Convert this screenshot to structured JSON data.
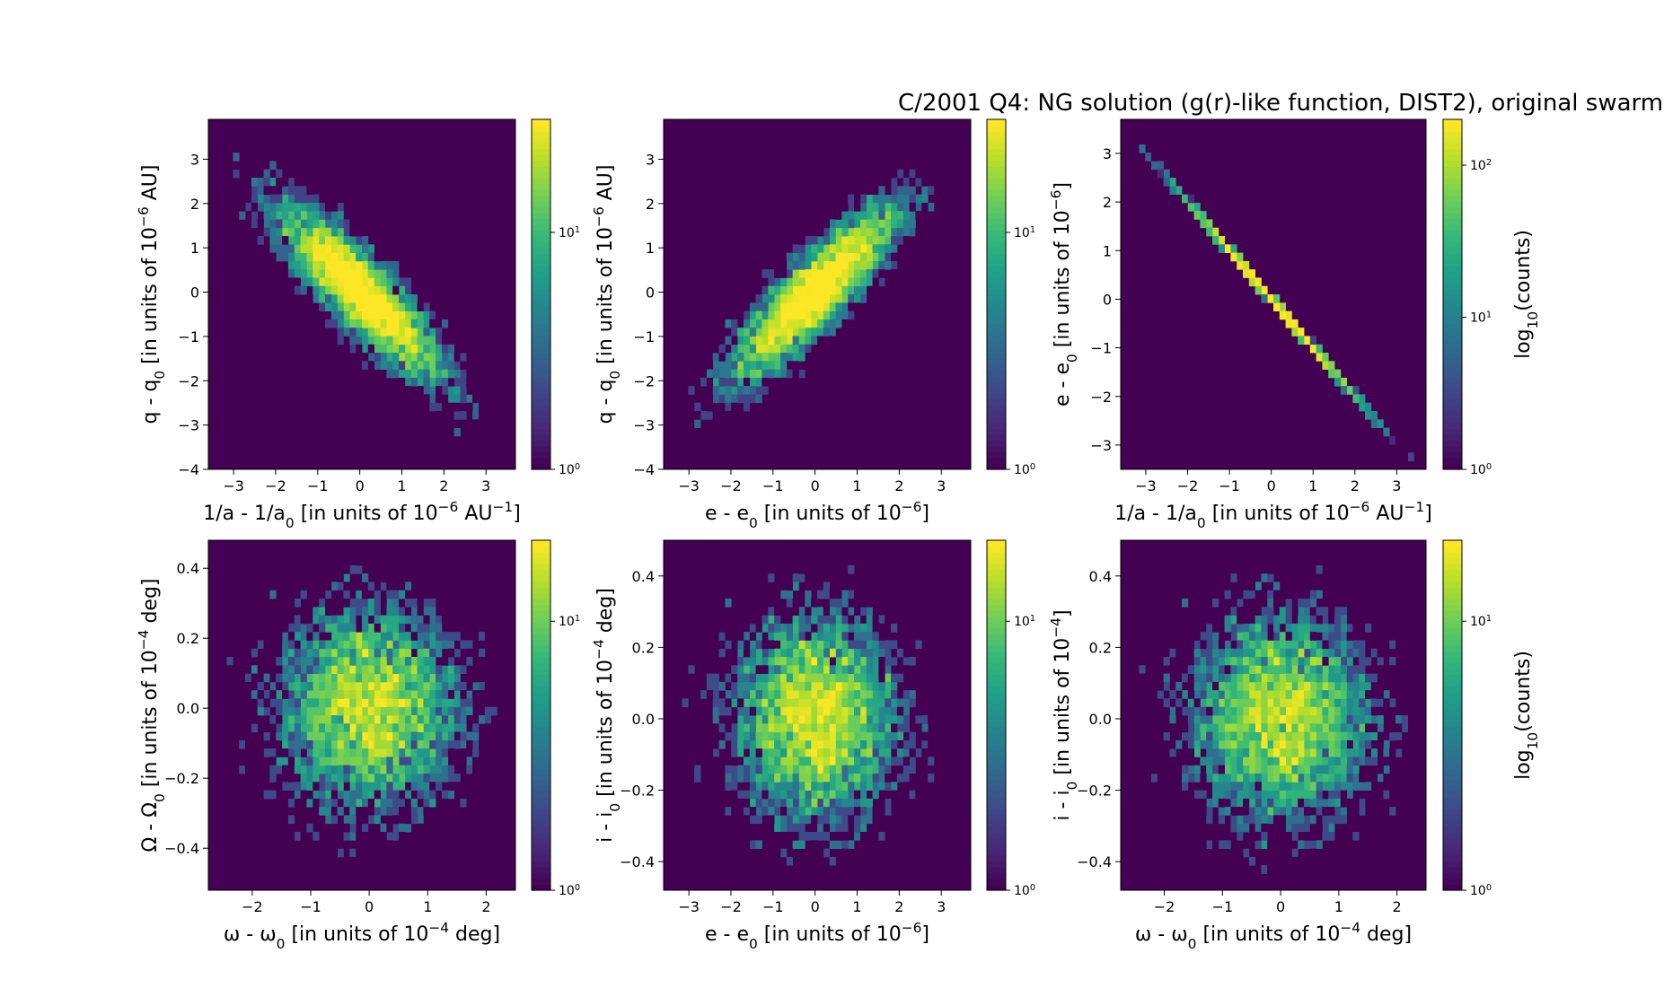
{
  "title": "C/2001 Q4:  NG solution (g(r)-like function, DIST2), original swarm",
  "colormap": [
    "#440154",
    "#482878",
    "#3e4989",
    "#31688e",
    "#26828e",
    "#1f9e89",
    "#35b779",
    "#6ece58",
    "#b5de2b",
    "#fde725"
  ],
  "background_color": "#440154",
  "chart_data": [
    {
      "type": "hexbin",
      "xlabel": "1/a - 1/a0 [in units of 10^-6 AU^-1]",
      "ylabel": "q - q0 [in units of 10^-6 AU]",
      "xlim": [
        -3.6,
        3.7
      ],
      "ylim": [
        -4.0,
        3.9
      ],
      "xticks": [
        -3,
        -2,
        -1,
        0,
        1,
        2,
        3
      ],
      "yticks": [
        -4,
        -3,
        -2,
        -1,
        0,
        1,
        2,
        3
      ],
      "xtick_labels": [
        "−3",
        "−2",
        "−1",
        "0",
        "1",
        "2",
        "3"
      ],
      "ytick_labels": [
        "−4",
        "−3",
        "−2",
        "−1",
        "0",
        "1",
        "2",
        "3"
      ],
      "distribution": {
        "sigma_x": 1.0,
        "sigma_y": 1.0,
        "correlation": -0.87
      },
      "colorbar": {
        "scale": "log",
        "min": 1,
        "max": 30,
        "tick_labels": [
          "10^0",
          "10^1"
        ],
        "label": ""
      }
    },
    {
      "type": "hexbin",
      "xlabel": "e - e0 [in units of 10^-6]",
      "ylabel": "q - q0 [in units of 10^-6 AU]",
      "xlim": [
        -3.6,
        3.7
      ],
      "ylim": [
        -4.0,
        3.9
      ],
      "xticks": [
        -3,
        -2,
        -1,
        0,
        1,
        2,
        3
      ],
      "yticks": [
        -4,
        -3,
        -2,
        -1,
        0,
        1,
        2,
        3
      ],
      "xtick_labels": [
        "−3",
        "−2",
        "−1",
        "0",
        "1",
        "2",
        "3"
      ],
      "ytick_labels": [
        "−4",
        "−3",
        "−2",
        "−1",
        "0",
        "1",
        "2",
        "3"
      ],
      "distribution": {
        "sigma_x": 1.0,
        "sigma_y": 1.0,
        "correlation": 0.87
      },
      "colorbar": {
        "scale": "log",
        "min": 1,
        "max": 30,
        "tick_labels": [
          "10^0",
          "10^1"
        ],
        "label": ""
      }
    },
    {
      "type": "hexbin",
      "xlabel": "1/a - 1/a0 [in units of 10^-6 AU^-1]",
      "ylabel": "e - e0 [in units of 10^-6]",
      "xlim": [
        -3.6,
        3.7
      ],
      "ylim": [
        -3.5,
        3.7
      ],
      "xticks": [
        -3,
        -2,
        -1,
        0,
        1,
        2,
        3
      ],
      "yticks": [
        -3,
        -2,
        -1,
        0,
        1,
        2,
        3
      ],
      "xtick_labels": [
        "−3",
        "−2",
        "−1",
        "0",
        "1",
        "2",
        "3"
      ],
      "ytick_labels": [
        "−3",
        "−2",
        "−1",
        "0",
        "1",
        "2",
        "3"
      ],
      "distribution": {
        "sigma_x": 1.0,
        "sigma_y": 1.0,
        "correlation": -1.0
      },
      "colorbar": {
        "scale": "log",
        "min": 1,
        "max": 200,
        "tick_labels": [
          "10^0",
          "10^1",
          "10^2"
        ],
        "label": "log10(counts)"
      }
    },
    {
      "type": "hexbin",
      "xlabel": "ω - ω0 [in units of 10^-4 deg]",
      "ylabel": "Ω - Ω0 [in units of 10^-4 deg]",
      "xlim": [
        -2.75,
        2.5
      ],
      "ylim": [
        -0.52,
        0.48
      ],
      "xticks": [
        -2,
        -1,
        0,
        1,
        2
      ],
      "yticks": [
        -0.4,
        -0.2,
        0.0,
        0.2,
        0.4
      ],
      "xtick_labels": [
        "−2",
        "−1",
        "0",
        "1",
        "2"
      ],
      "ytick_labels": [
        "−0.4",
        "−0.2",
        "0.0",
        "0.2",
        "0.4"
      ],
      "distribution": {
        "sigma_x": 0.8,
        "sigma_y": 0.15,
        "correlation": 0.0
      },
      "colorbar": {
        "scale": "log",
        "min": 1,
        "max": 20,
        "tick_labels": [
          "10^0",
          "10^1"
        ],
        "label": ""
      }
    },
    {
      "type": "hexbin",
      "xlabel": "e - e0 [in units of 10^-6]",
      "ylabel": "i - i0 [in units of 10^-4 deg]",
      "xlim": [
        -3.6,
        3.7
      ],
      "ylim": [
        -0.48,
        0.5
      ],
      "xticks": [
        -3,
        -2,
        -1,
        0,
        1,
        2,
        3
      ],
      "yticks": [
        -0.4,
        -0.2,
        0.0,
        0.2,
        0.4
      ],
      "xtick_labels": [
        "−3",
        "−2",
        "−1",
        "0",
        "1",
        "2",
        "3"
      ],
      "ytick_labels": [
        "−0.4",
        "−0.2",
        "0.0",
        "0.2",
        "0.4"
      ],
      "distribution": {
        "sigma_x": 1.0,
        "sigma_y": 0.15,
        "correlation": 0.0
      },
      "colorbar": {
        "scale": "log",
        "min": 1,
        "max": 20,
        "tick_labels": [
          "10^0",
          "10^1"
        ],
        "label": ""
      }
    },
    {
      "type": "hexbin",
      "xlabel": "ω - ω0 [in units of 10^-4 deg]",
      "ylabel": "i - i0 [in units of 10^-4]",
      "xlim": [
        -2.75,
        2.5
      ],
      "ylim": [
        -0.48,
        0.5
      ],
      "xticks": [
        -2,
        -1,
        0,
        1,
        2
      ],
      "yticks": [
        -0.4,
        -0.2,
        0.0,
        0.2,
        0.4
      ],
      "xtick_labels": [
        "−2",
        "−1",
        "0",
        "1",
        "2"
      ],
      "ytick_labels": [
        "−0.4",
        "−0.2",
        "0.0",
        "0.2",
        "0.4"
      ],
      "distribution": {
        "sigma_x": 0.8,
        "sigma_y": 0.15,
        "correlation": 0.0
      },
      "colorbar": {
        "scale": "log",
        "min": 1,
        "max": 20,
        "tick_labels": [
          "10^0",
          "10^1"
        ],
        "label": "log10(counts)"
      }
    }
  ]
}
